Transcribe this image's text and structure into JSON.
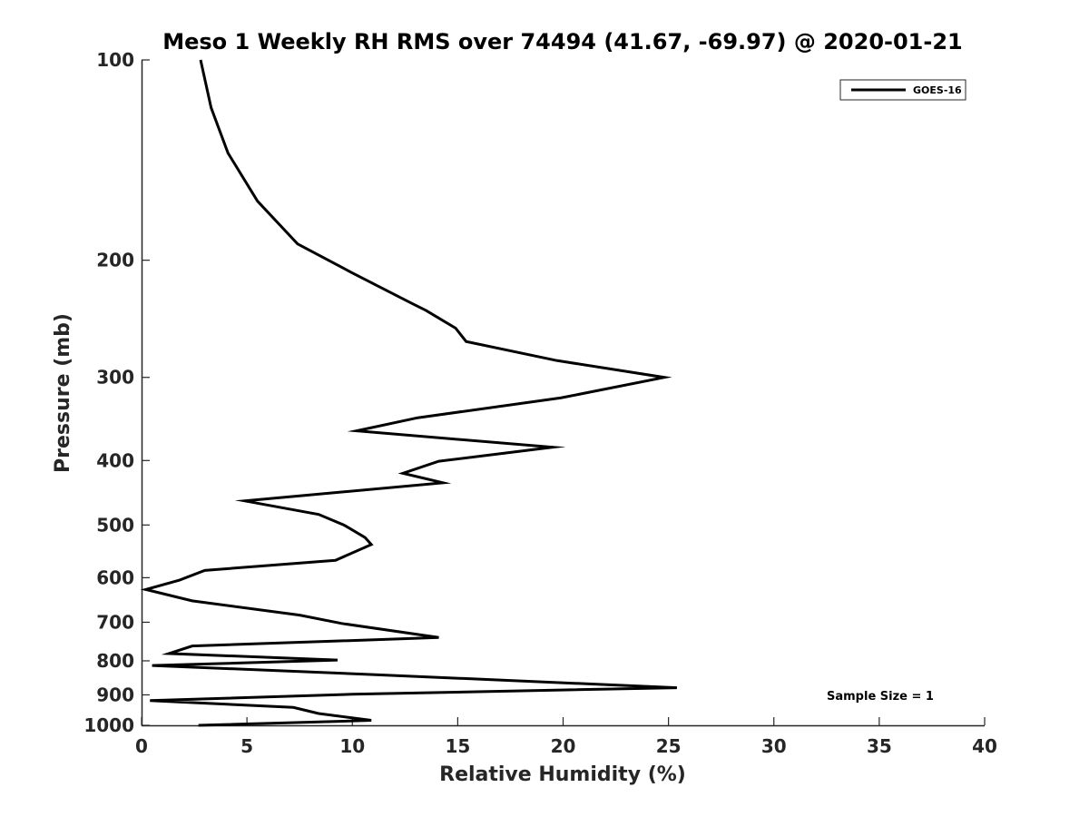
{
  "chart_data": {
    "type": "line",
    "title": "Meso 1 Weekly RH RMS over 74494 (41.67, -69.97) @ 2020-01-21",
    "xlabel": "Relative Humidity (%)",
    "ylabel": "Pressure (mb)",
    "xlim": [
      0,
      40
    ],
    "ylim": [
      100,
      1000
    ],
    "yscale": "log",
    "yreversed": true,
    "grid": false,
    "legend_position": "top-right",
    "x_ticks": [
      0,
      5,
      10,
      15,
      20,
      25,
      30,
      35,
      40
    ],
    "x_tick_labels": [
      "0",
      "5",
      "10",
      "15",
      "20",
      "25",
      "30",
      "35",
      "40"
    ],
    "y_ticks": [
      100,
      200,
      300,
      400,
      500,
      600,
      700,
      800,
      900,
      1000
    ],
    "y_tick_labels": [
      "100",
      "200",
      "300",
      "400",
      "500",
      "600",
      "700",
      "800",
      "900",
      "1000"
    ],
    "annotation": "Sample Size = 1",
    "series": [
      {
        "name": "GOES-16",
        "color": "#000000",
        "points": [
          [
            2.8,
            100
          ],
          [
            3.3,
            118
          ],
          [
            4.1,
            138
          ],
          [
            5.5,
            163
          ],
          [
            7.4,
            189
          ],
          [
            10.0,
            209
          ],
          [
            12.8,
            232
          ],
          [
            13.5,
            238
          ],
          [
            14.9,
            253
          ],
          [
            15.4,
            265
          ],
          [
            19.7,
            283
          ],
          [
            24.8,
            300
          ],
          [
            19.9,
            322
          ],
          [
            13.1,
            345
          ],
          [
            10.2,
            361
          ],
          [
            19.5,
            382
          ],
          [
            14.1,
            401
          ],
          [
            12.4,
            418
          ],
          [
            14.3,
            432
          ],
          [
            4.9,
            460
          ],
          [
            8.4,
            482
          ],
          [
            9.6,
            500
          ],
          [
            10.6,
            522
          ],
          [
            10.9,
            535
          ],
          [
            9.2,
            565
          ],
          [
            3.0,
            585
          ],
          [
            1.8,
            605
          ],
          [
            0.2,
            625
          ],
          [
            2.4,
            650
          ],
          [
            7.5,
            683
          ],
          [
            9.5,
            703
          ],
          [
            14.1,
            738
          ],
          [
            2.4,
            760
          ],
          [
            1.3,
            780
          ],
          [
            9.3,
            798
          ],
          [
            0.5,
            813
          ],
          [
            10.6,
            838
          ],
          [
            25.4,
            878
          ],
          [
            10.0,
            898
          ],
          [
            0.4,
            918
          ],
          [
            7.2,
            940
          ],
          [
            8.4,
            960
          ],
          [
            10.9,
            983
          ],
          [
            2.7,
            1000
          ]
        ]
      }
    ]
  }
}
